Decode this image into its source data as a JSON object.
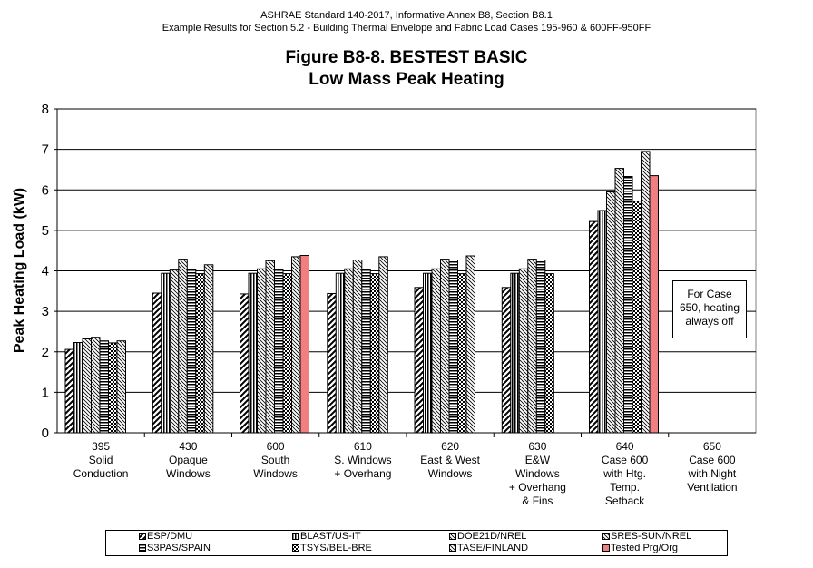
{
  "header": {
    "line1": "ASHRAE Standard 140-2017, Informative Annex B8, Section B8.1",
    "line2": "Example Results for Section 5.2 - Building Thermal Envelope and Fabric Load Cases 195-960 & 600FF-950FF"
  },
  "note": {
    "lines": [
      "For Case",
      "650, heating",
      "always off"
    ]
  },
  "chart_data": {
    "type": "bar",
    "title": "Figure B8-8.  BESTEST BASIC",
    "subtitle": "Low Mass Peak Heating",
    "ylabel": "Peak Heating Load (kW)",
    "ylim": [
      0,
      8
    ],
    "yticks": [
      0,
      1,
      2,
      3,
      4,
      5,
      6,
      7,
      8
    ],
    "grid": true,
    "legend_position": "bottom",
    "categories": [
      [
        "395",
        "Solid",
        "Conduction"
      ],
      [
        "430",
        "Opaque",
        "Windows"
      ],
      [
        "600",
        "South",
        "Windows"
      ],
      [
        "610",
        "S. Windows",
        "+ Overhang"
      ],
      [
        "620",
        "East & West",
        "Windows"
      ],
      [
        "630",
        "E&W",
        "Windows",
        "+ Overhang",
        "& Fins"
      ],
      [
        "640",
        "Case 600",
        "with Htg.",
        "Temp.",
        "Setback"
      ],
      [
        "650",
        "Case 600",
        "with Night",
        "Ventilation"
      ]
    ],
    "series": [
      {
        "name": "ESP/DMU",
        "pattern": "diag-left",
        "color": "#000000",
        "values": [
          2.06,
          3.45,
          3.43,
          3.44,
          3.59,
          3.59,
          5.22,
          null
        ]
      },
      {
        "name": "BLAST/US-IT",
        "pattern": "vertical",
        "color": "#000000",
        "values": [
          2.23,
          3.94,
          3.94,
          3.94,
          3.94,
          3.94,
          5.49,
          null
        ]
      },
      {
        "name": "DOE21D/NREL",
        "pattern": "diag-right-fine",
        "color": "#000000",
        "values": [
          2.32,
          4.02,
          4.05,
          4.05,
          4.05,
          4.05,
          5.95,
          null
        ]
      },
      {
        "name": "SRES-SUN/NREL",
        "pattern": "diag-right-fine",
        "color": "#000000",
        "values": [
          2.36,
          4.29,
          4.25,
          4.27,
          4.29,
          4.29,
          6.53,
          null
        ]
      },
      {
        "name": "S3PAS/SPAIN",
        "pattern": "horizontal",
        "color": "#000000",
        "values": [
          2.27,
          4.04,
          4.04,
          4.04,
          4.27,
          4.27,
          6.33,
          null
        ]
      },
      {
        "name": "TSYS/BEL-BRE",
        "pattern": "checker",
        "color": "#000000",
        "values": [
          2.22,
          3.93,
          3.93,
          3.93,
          3.93,
          3.93,
          5.72,
          null
        ]
      },
      {
        "name": "TASE/FINLAND",
        "pattern": "diag-right-fine",
        "color": "#000000",
        "values": [
          2.27,
          4.15,
          4.35,
          4.35,
          4.37,
          null,
          6.95,
          null
        ]
      },
      {
        "name": "Tested Prg/Org",
        "pattern": "solid",
        "color": "#f08080",
        "values": [
          null,
          null,
          4.38,
          null,
          null,
          null,
          6.35,
          null
        ]
      }
    ]
  }
}
